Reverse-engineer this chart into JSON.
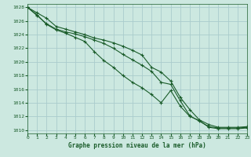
{
  "title": "Graphe pression niveau de la mer (hPa)",
  "background_color": "#cce8e0",
  "grid_color": "#aacccc",
  "line_color": "#1a5c2a",
  "xlim": [
    0,
    23
  ],
  "ylim": [
    1009.5,
    1028.5
  ],
  "yticks": [
    1010,
    1012,
    1014,
    1016,
    1018,
    1020,
    1022,
    1024,
    1026,
    1028
  ],
  "xticks": [
    0,
    1,
    2,
    3,
    4,
    5,
    6,
    7,
    8,
    9,
    10,
    11,
    12,
    13,
    14,
    15,
    16,
    17,
    18,
    19,
    20,
    21,
    22,
    23
  ],
  "line1_x": [
    0,
    1,
    2,
    3,
    4,
    5,
    6,
    7,
    8,
    9,
    10,
    11,
    12,
    13,
    14,
    15,
    16,
    17,
    18,
    19,
    20,
    21,
    22,
    23
  ],
  "line1_y": [
    1028.0,
    1027.2,
    1026.4,
    1025.2,
    1024.8,
    1024.4,
    1024.0,
    1023.5,
    1023.2,
    1022.8,
    1022.3,
    1021.7,
    1021.0,
    1019.2,
    1018.5,
    1017.2,
    1014.8,
    1013.0,
    1011.5,
    1010.8,
    1010.4,
    1010.4,
    1010.4,
    1010.5
  ],
  "line2_x": [
    0,
    1,
    2,
    3,
    4,
    5,
    6,
    7,
    8,
    9,
    10,
    11,
    12,
    13,
    14,
    15,
    16,
    17,
    18,
    19,
    20,
    21,
    22,
    23
  ],
  "line2_y": [
    1028.0,
    1026.8,
    1025.6,
    1024.8,
    1024.4,
    1024.1,
    1023.7,
    1023.2,
    1022.7,
    1022.0,
    1021.1,
    1020.3,
    1019.5,
    1018.6,
    1017.0,
    1016.7,
    1014.3,
    1012.1,
    1011.3,
    1010.5,
    1010.3,
    1010.3,
    1010.3,
    1010.4
  ],
  "line3_x": [
    0,
    1,
    2,
    3,
    4,
    5,
    6,
    7,
    8,
    9,
    10,
    11,
    12,
    13,
    14,
    15,
    16,
    17,
    18,
    19,
    20,
    21,
    22,
    23
  ],
  "line3_y": [
    1028.0,
    1026.9,
    1025.5,
    1024.7,
    1024.2,
    1023.6,
    1023.0,
    1021.5,
    1020.2,
    1019.2,
    1018.0,
    1017.0,
    1016.2,
    1015.2,
    1014.0,
    1015.8,
    1013.5,
    1012.0,
    1011.4,
    1010.4,
    1010.2,
    1010.2,
    1010.2,
    1010.3
  ]
}
